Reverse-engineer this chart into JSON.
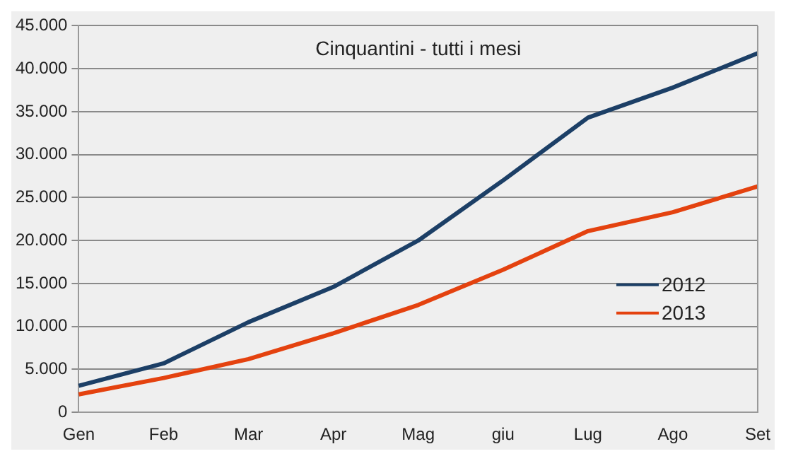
{
  "chart_data": {
    "type": "line",
    "title": "Cinquantini - tutti i mesi",
    "categories": [
      "Gen",
      "Feb",
      "Mar",
      "Apr",
      "Mag",
      "giu",
      "Lug",
      "Ago",
      "Set"
    ],
    "series": [
      {
        "name": "2012",
        "color": "#1c3f66",
        "values": [
          3100,
          5700,
          10500,
          14600,
          20000,
          27000,
          34300,
          37800,
          41800
        ]
      },
      {
        "name": "2013",
        "color": "#e4420f",
        "values": [
          2100,
          4000,
          6200,
          9200,
          12500,
          16600,
          21100,
          23300,
          26300
        ]
      }
    ],
    "ylim": [
      0,
      45000
    ],
    "yticks": [
      {
        "value": 0,
        "label": "0"
      },
      {
        "value": 5000,
        "label": "5.000"
      },
      {
        "value": 10000,
        "label": "10.000"
      },
      {
        "value": 15000,
        "label": "15.000"
      },
      {
        "value": 20000,
        "label": "20.000"
      },
      {
        "value": 25000,
        "label": "25.000"
      },
      {
        "value": 30000,
        "label": "30.000"
      },
      {
        "value": 35000,
        "label": "35.000"
      },
      {
        "value": 40000,
        "label": "40.000"
      },
      {
        "value": 45000,
        "label": "45.000"
      }
    ],
    "grid": "y",
    "legend": "right",
    "marker": "none",
    "line_style": "solid"
  }
}
